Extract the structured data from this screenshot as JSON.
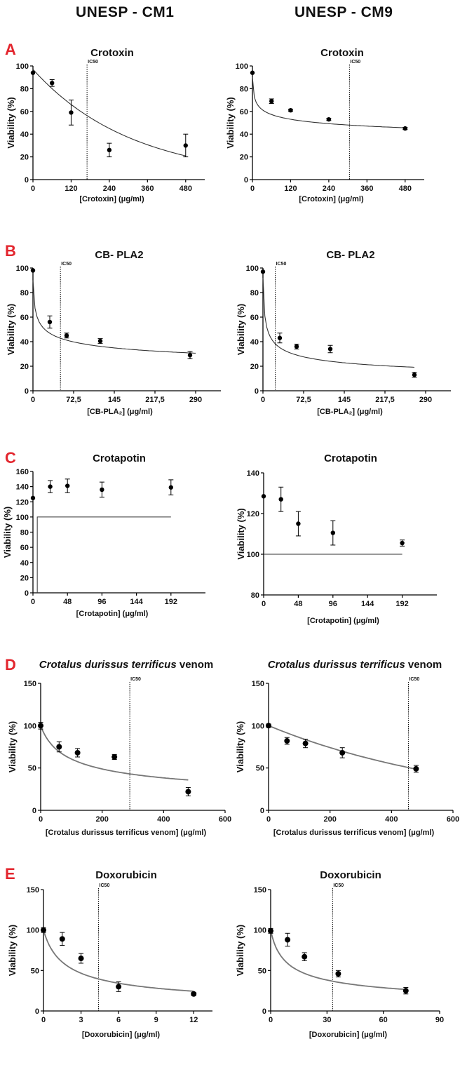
{
  "headers": {
    "left": "UNESP - CM1",
    "right": "UNESP - CM9"
  },
  "panel_letters": [
    "A",
    "B",
    "C",
    "D",
    "E"
  ],
  "chart_data": [
    {
      "id": "A1",
      "type": "scatter",
      "panel": "A",
      "title": "Crotoxin",
      "title_italic": "",
      "title_suffix": "",
      "ylabel": "Viability (%)",
      "xlabel": "[Crotoxin] (μg/ml)",
      "xlim": [
        0,
        540
      ],
      "ylim": [
        0,
        100
      ],
      "xticks": [
        0,
        120,
        240,
        360,
        480
      ],
      "xtick_labels": [
        "0",
        "120",
        "240",
        "360",
        "480"
      ],
      "yticks": [
        0,
        20,
        40,
        60,
        80,
        100
      ],
      "ytick_labels": [
        "0",
        "20",
        "40",
        "60",
        "80",
        "100"
      ],
      "points": [
        {
          "x": 0,
          "y": 94,
          "err": 0
        },
        {
          "x": 60,
          "y": 85,
          "err": 3
        },
        {
          "x": 120,
          "y": 59,
          "err": 11
        },
        {
          "x": 240,
          "y": 26,
          "err": 6
        },
        {
          "x": 480,
          "y": 30,
          "err": 10
        }
      ],
      "curve": {
        "kind": "exp",
        "a": 97,
        "b": 0.0032,
        "x0": 0,
        "x1": 480
      },
      "ic50": 170,
      "ic50_label": "IC50"
    },
    {
      "id": "A2",
      "type": "scatter",
      "panel": "A",
      "title": "Crotoxin",
      "title_italic": "",
      "title_suffix": "",
      "ylabel": "Viability (%)",
      "xlabel": "[Crotoxin] (μg/ml)",
      "xlim": [
        0,
        540
      ],
      "ylim": [
        0,
        100
      ],
      "xticks": [
        0,
        120,
        240,
        360,
        480
      ],
      "xtick_labels": [
        "0",
        "120",
        "240",
        "360",
        "480"
      ],
      "yticks": [
        0,
        20,
        40,
        60,
        80,
        100
      ],
      "ytick_labels": [
        "0",
        "20",
        "40",
        "60",
        "80",
        "100"
      ],
      "points": [
        {
          "x": 0,
          "y": 94,
          "err": 0
        },
        {
          "x": 60,
          "y": 69,
          "err": 2
        },
        {
          "x": 120,
          "y": 61,
          "err": 1
        },
        {
          "x": 240,
          "y": 53,
          "err": 1
        },
        {
          "x": 480,
          "y": 45,
          "err": 1
        }
      ],
      "curve": {
        "kind": "power",
        "a": 90,
        "p": 0.11,
        "c": 1,
        "x0": 0,
        "x1": 480
      },
      "ic50": 305,
      "ic50_label": "IC50"
    },
    {
      "id": "B1",
      "type": "scatter",
      "panel": "B",
      "title": "CB- PLA2",
      "title_italic": "",
      "title_suffix": "",
      "ylabel": "Viability (%)",
      "xlabel": "[CB-PLA₂] (μg/ml)",
      "xlim": [
        0,
        335
      ],
      "ylim": [
        0,
        100
      ],
      "xticks": [
        0,
        72.5,
        145,
        217.5,
        290
      ],
      "xtick_labels": [
        "0",
        "72,5",
        "145",
        "217,5",
        "290"
      ],
      "yticks": [
        0,
        20,
        40,
        60,
        80,
        100
      ],
      "ytick_labels": [
        "0",
        "20",
        "40",
        "60",
        "80",
        "100"
      ],
      "points": [
        {
          "x": 0,
          "y": 98,
          "err": 0
        },
        {
          "x": 30,
          "y": 56,
          "err": 5
        },
        {
          "x": 60,
          "y": 45,
          "err": 2
        },
        {
          "x": 120,
          "y": 40.5,
          "err": 2
        },
        {
          "x": 280,
          "y": 29,
          "err": 3
        }
      ],
      "curve": {
        "kind": "power",
        "a": 90,
        "p": 0.19,
        "c": 1,
        "x0": 0,
        "x1": 290
      },
      "ic50": 49,
      "ic50_label": "IC50"
    },
    {
      "id": "B2",
      "type": "scatter",
      "panel": "B",
      "title": "CB- PLA2",
      "title_italic": "",
      "title_suffix": "",
      "ylabel": "Viability (%)",
      "xlabel": "[CB-PLA₂] (μg/ml)",
      "xlim": [
        0,
        335
      ],
      "ylim": [
        0,
        100
      ],
      "xticks": [
        0,
        72.5,
        145,
        217.5,
        290
      ],
      "xtick_labels": [
        "0",
        "72,5",
        "145",
        "217,5",
        "290"
      ],
      "yticks": [
        0,
        20,
        40,
        60,
        80,
        100
      ],
      "ytick_labels": [
        "0",
        "20",
        "40",
        "60",
        "80",
        "100"
      ],
      "points": [
        {
          "x": 0,
          "y": 97,
          "err": 0
        },
        {
          "x": 30,
          "y": 43,
          "err": 4
        },
        {
          "x": 60,
          "y": 36,
          "err": 2
        },
        {
          "x": 120,
          "y": 34,
          "err": 3
        },
        {
          "x": 270,
          "y": 13,
          "err": 2
        }
      ],
      "curve": {
        "kind": "power",
        "a": 92,
        "p": 0.28,
        "c": 1,
        "x0": 0,
        "x1": 270
      },
      "ic50": 22,
      "ic50_label": "IC50"
    },
    {
      "id": "C1",
      "type": "scatter",
      "panel": "C",
      "title": "Crotapotin",
      "title_italic": "",
      "title_suffix": "",
      "ylabel": "Viability (%)",
      "xlabel": "[Crotapotin] (μg/ml)",
      "xlim": [
        0,
        240
      ],
      "ylim": [
        0,
        160
      ],
      "xticks": [
        0,
        48,
        96,
        144,
        192
      ],
      "xtick_labels": [
        "0",
        "48",
        "96",
        "144",
        "192"
      ],
      "yticks": [
        0,
        20,
        40,
        60,
        80,
        100,
        120,
        140,
        160
      ],
      "ytick_labels": [
        "0",
        "20",
        "40",
        "60",
        "80",
        "100",
        "120",
        "140",
        "160"
      ],
      "points": [
        {
          "x": 0,
          "y": 125,
          "err": 0
        },
        {
          "x": 24,
          "y": 140,
          "err": 8
        },
        {
          "x": 48,
          "y": 141,
          "err": 9
        },
        {
          "x": 96,
          "y": 136,
          "err": 10
        },
        {
          "x": 192,
          "y": 139,
          "err": 10
        }
      ],
      "curve": {
        "kind": "step",
        "x0": 6,
        "x1": 192,
        "y": 100
      },
      "ic50": null,
      "ic50_label": ""
    },
    {
      "id": "C2",
      "type": "scatter",
      "panel": "C",
      "title": "Crotapotin",
      "title_italic": "",
      "title_suffix": "",
      "ylabel": "Viability (%)",
      "xlabel": "[Crotapotin] (μg/ml)",
      "xlim": [
        0,
        240
      ],
      "ylim": [
        80,
        140
      ],
      "xticks": [
        0,
        48,
        96,
        144,
        192
      ],
      "xtick_labels": [
        "0",
        "48",
        "96",
        "144",
        "192"
      ],
      "yticks": [
        80,
        100,
        120,
        140
      ],
      "ytick_labels": [
        "80",
        "100",
        "120",
        "140"
      ],
      "points": [
        {
          "x": 0,
          "y": 128.5,
          "err": 0
        },
        {
          "x": 24,
          "y": 127,
          "err": 6
        },
        {
          "x": 48,
          "y": 115,
          "err": 6
        },
        {
          "x": 96,
          "y": 110.5,
          "err": 6
        },
        {
          "x": 192,
          "y": 105.5,
          "err": 1.5
        }
      ],
      "curve": {
        "kind": "hline",
        "x0": 0,
        "x1": 192,
        "y": 100
      },
      "ic50": null,
      "ic50_label": ""
    },
    {
      "id": "D1",
      "type": "scatter",
      "panel": "D",
      "title": "",
      "title_italic": "Crotalus durissus terrificus",
      "title_suffix": " venom",
      "ylabel": "Viability (%)",
      "xlabel": "[Crotalus durissus terrificus venom] (μg/ml)",
      "xlim": [
        0,
        600
      ],
      "ylim": [
        0,
        150
      ],
      "xticks": [
        0,
        200,
        400,
        600
      ],
      "xtick_labels": [
        "0",
        "200",
        "400",
        "600"
      ],
      "yticks": [
        0,
        50,
        100,
        150
      ],
      "ytick_labels": [
        "0",
        "50",
        "100",
        "150"
      ],
      "points": [
        {
          "x": 0,
          "y": 100,
          "err": 4
        },
        {
          "x": 60,
          "y": 75,
          "err": 6
        },
        {
          "x": 120,
          "y": 68,
          "err": 5
        },
        {
          "x": 240,
          "y": 63,
          "err": 3
        },
        {
          "x": 480,
          "y": 22,
          "err": 5
        }
      ],
      "curve": {
        "kind": "power",
        "a": 100,
        "p": 0.4,
        "c": 40,
        "x0": 0,
        "x1": 480
      },
      "ic50": 290,
      "ic50_label": "IC50"
    },
    {
      "id": "D2",
      "type": "scatter",
      "panel": "D",
      "title": "",
      "title_italic": "Crotalus durissus terrificus",
      "title_suffix": " venom",
      "ylabel": "Viability (%)",
      "xlabel": "[Crotalus durissus terrificus venom] (μg/ml)",
      "xlim": [
        0,
        600
      ],
      "ylim": [
        0,
        150
      ],
      "xticks": [
        0,
        200,
        400,
        600
      ],
      "xtick_labels": [
        "0",
        "200",
        "400",
        "600"
      ],
      "yticks": [
        0,
        50,
        100,
        150
      ],
      "ytick_labels": [
        "0",
        "50",
        "100",
        "150"
      ],
      "points": [
        {
          "x": 0,
          "y": 100,
          "err": 2
        },
        {
          "x": 60,
          "y": 82,
          "err": 4
        },
        {
          "x": 120,
          "y": 79,
          "err": 5
        },
        {
          "x": 240,
          "y": 68,
          "err": 6
        },
        {
          "x": 480,
          "y": 49,
          "err": 4
        }
      ],
      "curve": {
        "kind": "exp",
        "a": 100,
        "b": 0.0015,
        "x0": 0,
        "x1": 480
      },
      "ic50": 455,
      "ic50_label": "IC50"
    },
    {
      "id": "E1",
      "type": "scatter",
      "panel": "E",
      "title": "Doxorubicin",
      "title_italic": "",
      "title_suffix": "",
      "ylabel": "Viability (%)",
      "xlabel": "[Doxorubicin] (μg/ml)",
      "xlim": [
        0,
        13.5
      ],
      "ylim": [
        0,
        150
      ],
      "xticks": [
        0,
        3,
        6,
        9,
        12
      ],
      "xtick_labels": [
        "0",
        "3",
        "6",
        "9",
        "12"
      ],
      "yticks": [
        0,
        50,
        100,
        150
      ],
      "ytick_labels": [
        "0",
        "50",
        "100",
        "150"
      ],
      "points": [
        {
          "x": 0,
          "y": 100,
          "err": 3
        },
        {
          "x": 1.5,
          "y": 89,
          "err": 8
        },
        {
          "x": 3,
          "y": 65,
          "err": 6
        },
        {
          "x": 6,
          "y": 30,
          "err": 6
        },
        {
          "x": 12,
          "y": 21,
          "err": 2
        }
      ],
      "curve": {
        "kind": "power",
        "a": 100,
        "p": 0.55,
        "c": 1,
        "x0": 0,
        "x1": 12
      },
      "ic50": 4.4,
      "ic50_label": "IC50"
    },
    {
      "id": "E2",
      "type": "scatter",
      "panel": "E",
      "title": "Doxorubicin",
      "title_italic": "",
      "title_suffix": "",
      "ylabel": "Viability (%)",
      "xlabel": "[Doxorubicin] (μg/ml)",
      "xlim": [
        0,
        90
      ],
      "ylim": [
        0,
        150
      ],
      "xticks": [
        0,
        30,
        60,
        90
      ],
      "xtick_labels": [
        "0",
        "30",
        "60",
        "90"
      ],
      "yticks": [
        0,
        50,
        100,
        150
      ],
      "ytick_labels": [
        "0",
        "50",
        "100",
        "150"
      ],
      "points": [
        {
          "x": 0,
          "y": 99,
          "err": 3
        },
        {
          "x": 9,
          "y": 88,
          "err": 8
        },
        {
          "x": 18,
          "y": 67,
          "err": 5
        },
        {
          "x": 36,
          "y": 46,
          "err": 4
        },
        {
          "x": 72,
          "y": 25,
          "err": 4
        }
      ],
      "curve": {
        "kind": "power",
        "a": 100,
        "p": 0.45,
        "c": 4,
        "x0": 0,
        "x1": 72
      },
      "ic50": 33,
      "ic50_label": "IC50"
    }
  ]
}
